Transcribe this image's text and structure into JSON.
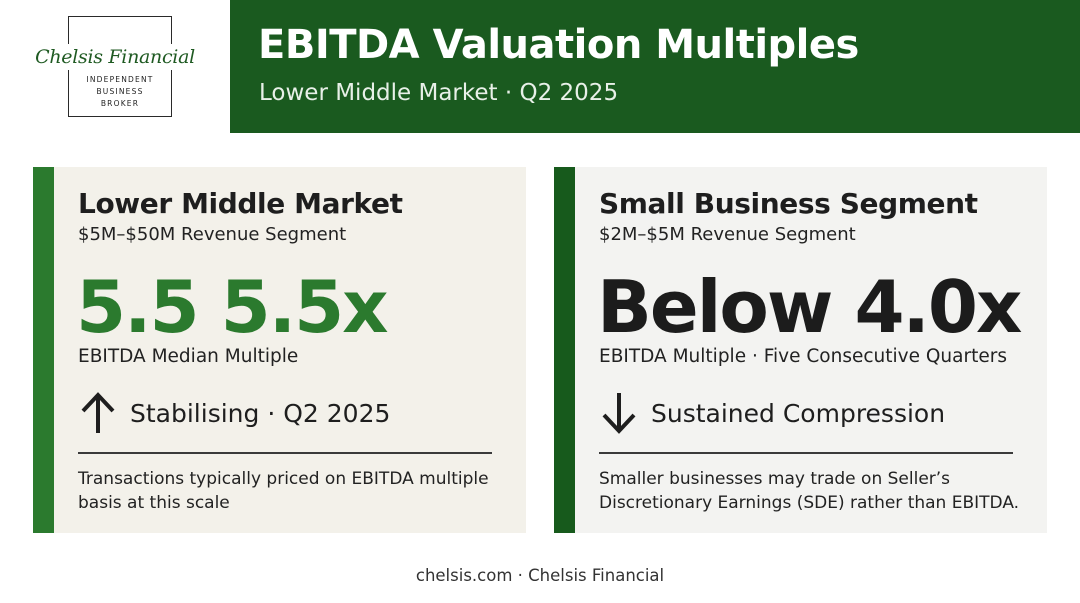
{
  "logo": {
    "script_name": "Chelsis Financial",
    "tagline_line1": "INDEPENDENT",
    "tagline_line2": "BUSINESS",
    "tagline_line3": "BROKER"
  },
  "header": {
    "title": "EBITDA Valuation Multiples",
    "subtitle": "Lower Middle Market · Q2 2025"
  },
  "cards": [
    {
      "title": "Lower Middle Market",
      "subtitle": "$5M–$50M Revenue Segment",
      "big_value": "5.5 5.5x",
      "metric_label": "EBITDA Median Multiple",
      "trend_icon": "arrow-up-icon",
      "trend_text": "Stabilising · Q2 2025",
      "note": "Transactions typically priced on EBITDA multiple basis at this scale",
      "accent_color": "#2b7a2e"
    },
    {
      "title": "Small Business Segment",
      "subtitle": "$2M–$5M Revenue Segment",
      "big_value": "Below 4.0x",
      "metric_label": "EBITDA Multiple · Five Consecutive Quarters",
      "trend_icon": "arrow-down-icon",
      "trend_text": "Sustained Compression",
      "note": "Smaller businesses may trade on Seller’s Discretionary Earnings (SDE) rather than EBITDA.",
      "accent_color": "#175a1c"
    }
  ],
  "footer": {
    "text": "chelsis.com · Chelsis Financial"
  },
  "colors": {
    "header_band": "#1a5a1f",
    "highlight_green": "#2b7a2e"
  }
}
